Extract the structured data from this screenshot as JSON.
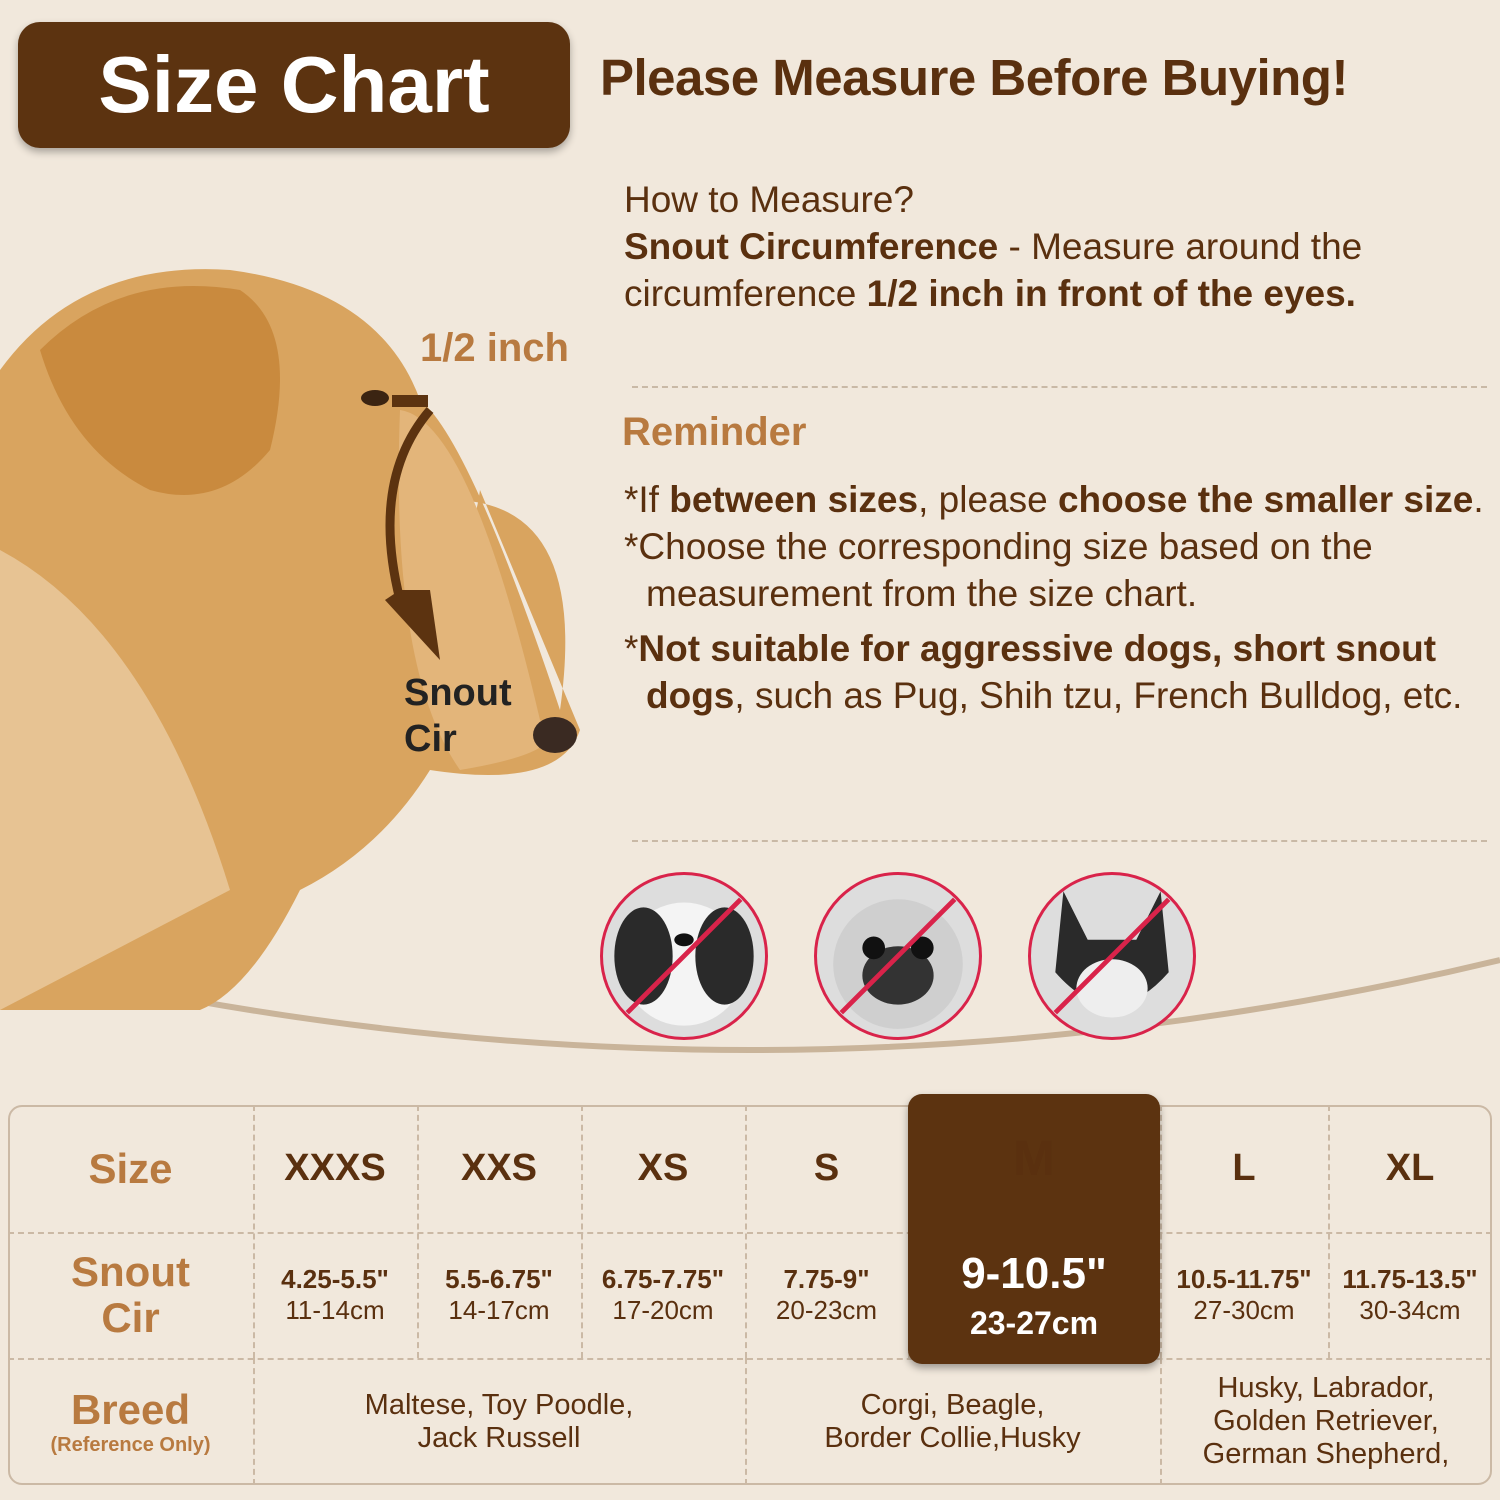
{
  "header": {
    "title": "Size Chart",
    "headline": "Please Measure Before Buying!"
  },
  "measure": {
    "question": "How to Measure?",
    "term": "Snout Circumference",
    "desc1": " - Measure around the circumference ",
    "desc_bold": "1/2 inch in front of the eyes."
  },
  "reminder": {
    "title": "Reminder",
    "r1": {
      "a": "*If ",
      "b": "between sizes",
      "c": ", please ",
      "d": "choose the smaller size",
      "e": "."
    },
    "r2": "*Choose the corresponding size based on the measurement from the size chart.",
    "r3": {
      "a": "*",
      "b": "Not suitable for aggressive dogs, short snout dogs",
      "c": ", such as Pug, Shih tzu, French Bulldog, etc."
    }
  },
  "diagram": {
    "half_inch": "1/2 inch",
    "snout_label_1": "Snout",
    "snout_label_2": "Cir"
  },
  "not_suitable_icons": [
    "shih-tzu",
    "pug",
    "french-bulldog"
  ],
  "colors": {
    "background": "#f1e8dc",
    "brown": "#5c3310",
    "tan": "#b87a40",
    "prohibit_red": "#d9234a"
  },
  "table": {
    "labels": {
      "size": "Size",
      "snout1": "Snout",
      "snout2": "Cir",
      "breed": "Breed",
      "breed_note": "(Reference Only)"
    },
    "highlighted": "M",
    "sizes": [
      {
        "size": "XXXS",
        "inch": "4.25-5.5\"",
        "cm": "11-14cm"
      },
      {
        "size": "XXS",
        "inch": "5.5-6.75\"",
        "cm": "14-17cm"
      },
      {
        "size": "XS",
        "inch": "6.75-7.75\"",
        "cm": "17-20cm"
      },
      {
        "size": "S",
        "inch": "7.75-9\"",
        "cm": "20-23cm"
      },
      {
        "size": "M",
        "inch": "9-10.5\"",
        "cm": "23-27cm"
      },
      {
        "size": "L",
        "inch": "10.5-11.75\"",
        "cm": "27-30cm"
      },
      {
        "size": "XL",
        "inch": "11.75-13.5\"",
        "cm": "30-34cm"
      }
    ],
    "breeds": [
      {
        "l1": "Maltese, Toy Poodle,",
        "l2": "Jack Russell"
      },
      {
        "l1": "Corgi, Beagle,",
        "l2": "Border Collie,Husky"
      },
      {
        "l1": "Husky, Labrador,",
        "l2": "Golden Retriever,",
        "l3": "German Shepherd,"
      }
    ]
  }
}
